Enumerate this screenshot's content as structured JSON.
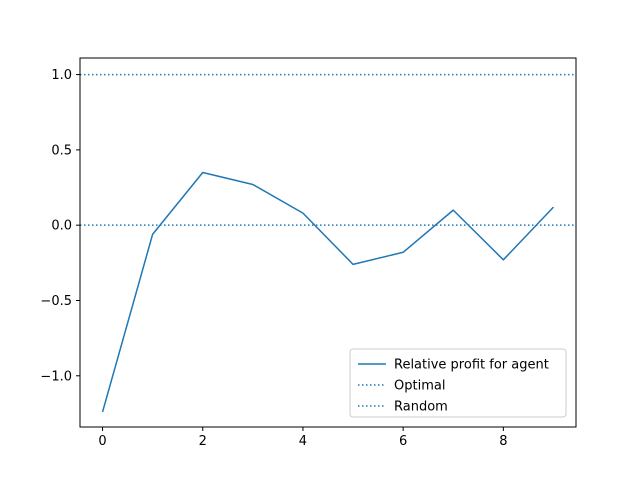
{
  "chart_data": {
    "type": "line",
    "title": "",
    "xlabel": "",
    "ylabel": "",
    "xlim": [
      -0.45,
      9.45
    ],
    "ylim": [
      -1.34,
      1.11
    ],
    "x_ticks": [
      0,
      2,
      4,
      6,
      8
    ],
    "x_tick_labels": [
      "0",
      "2",
      "4",
      "6",
      "8"
    ],
    "y_ticks": [
      -1.0,
      -0.5,
      0.0,
      0.5,
      1.0
    ],
    "y_tick_labels": [
      "−1.0",
      "−0.5",
      "0.0",
      "0.5",
      "1.0"
    ],
    "grid": false,
    "legend_position": "lower-right",
    "series": [
      {
        "name": "Relative profit for agent",
        "style": "solid",
        "color": "#1f77b4",
        "x": [
          0,
          1,
          2,
          3,
          4,
          5,
          6,
          7,
          8,
          9
        ],
        "values": [
          -1.24,
          -0.06,
          0.35,
          0.27,
          0.08,
          -0.26,
          -0.18,
          0.1,
          -0.23,
          0.12
        ]
      },
      {
        "name": "Optimal",
        "style": "dotted",
        "color": "#1f77b4",
        "hline": 1.0
      },
      {
        "name": "Random",
        "style": "dotted",
        "color": "#1f77b4",
        "hline": 0.0
      }
    ]
  }
}
